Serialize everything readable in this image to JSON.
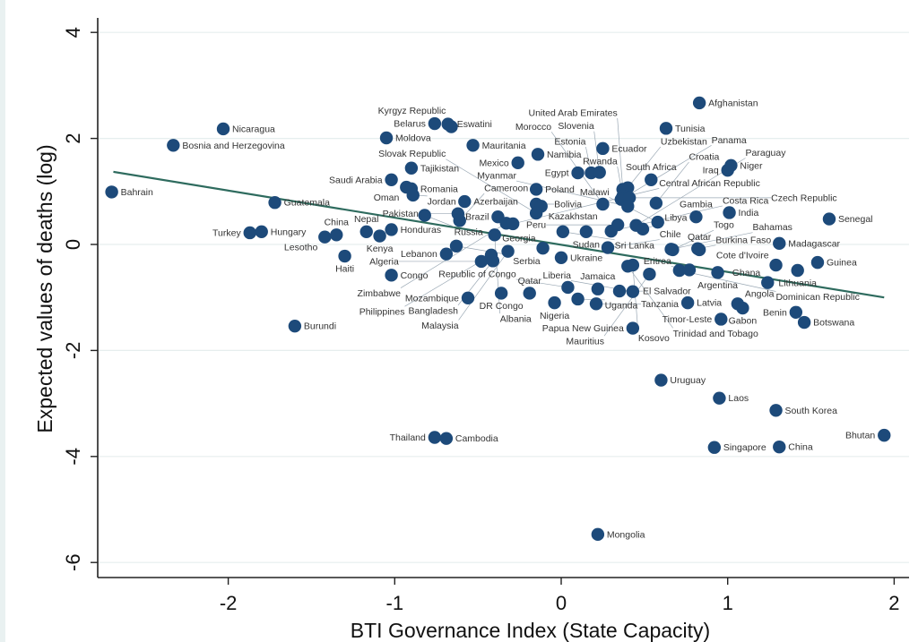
{
  "chart_data": {
    "type": "scatter",
    "title": "",
    "xlabel": "BTI Governance Index (State Capacity)",
    "ylabel": "Expected values of deaths (log)",
    "xlim": [
      -2.78,
      2.08
    ],
    "ylim": [
      -6.3,
      4.3
    ],
    "xticks": [
      -2,
      -1,
      0,
      1,
      2
    ],
    "yticks": [
      4,
      2,
      0,
      -2,
      -4,
      -6
    ],
    "grid": "horizontal",
    "legend": "none",
    "marker_color": "#1d4a7a",
    "fit_line_color": "#2e6b5e",
    "fit_line": {
      "x": [
        -2.69,
        1.94
      ],
      "y": [
        1.37,
        -1.0
      ]
    },
    "points": [
      {
        "label": "Bahrain",
        "x": -2.7,
        "y": 0.99
      },
      {
        "label": "Bosnia and Herzegovina",
        "x": -2.33,
        "y": 1.87
      },
      {
        "label": "Nicaragua",
        "x": -2.03,
        "y": 2.18
      },
      {
        "label": "Guatemala",
        "x": -1.72,
        "y": 0.79
      },
      {
        "label": "Turkey",
        "x": -1.87,
        "y": 0.22
      },
      {
        "label": "Hungary",
        "x": -1.8,
        "y": 0.24
      },
      {
        "label": "Lesotho",
        "x": -1.42,
        "y": 0.14
      },
      {
        "label": "China",
        "x": -1.35,
        "y": 0.18
      },
      {
        "label": "Haiti",
        "x": -1.3,
        "y": -0.22
      },
      {
        "label": "Nepal",
        "x": -1.17,
        "y": 0.24
      },
      {
        "label": "Kenya",
        "x": -1.09,
        "y": 0.16
      },
      {
        "label": "Honduras",
        "x": -1.02,
        "y": 0.28
      },
      {
        "label": "Congo",
        "x": -1.02,
        "y": -0.58
      },
      {
        "label": "Burundi",
        "x": -1.6,
        "y": -1.54
      },
      {
        "label": "Moldova",
        "x": -1.05,
        "y": 2.01
      },
      {
        "label": "Saudi Arabia",
        "x": -1.02,
        "y": 1.22
      },
      {
        "label": "Oman",
        "x": -0.93,
        "y": 1.08
      },
      {
        "label": "Romania",
        "x": -0.9,
        "y": 1.05
      },
      {
        "label": "Jordan",
        "x": -0.89,
        "y": 0.93
      },
      {
        "label": "Tajikistan",
        "x": -0.9,
        "y": 1.44
      },
      {
        "label": "Russia",
        "x": -0.82,
        "y": 0.55
      },
      {
        "label": "Belarus",
        "x": -0.76,
        "y": 2.28
      },
      {
        "label": "Eswatini",
        "x": -0.68,
        "y": 2.27
      },
      {
        "label": "Kyrgyz Republic",
        "x": -0.66,
        "y": 2.22
      },
      {
        "label": "Mauritania",
        "x": -0.53,
        "y": 1.87
      },
      {
        "label": "Azerbaijan",
        "x": -0.58,
        "y": 0.81
      },
      {
        "label": "Pakistan",
        "x": -0.62,
        "y": 0.58
      },
      {
        "label": "Cameroon",
        "x": -0.61,
        "y": 0.45
      },
      {
        "label": "Serbia",
        "x": -0.63,
        "y": -0.03
      },
      {
        "label": "Lebanon",
        "x": -0.69,
        "y": -0.18
      },
      {
        "label": "Mozambique",
        "x": -0.56,
        "y": -1.01
      },
      {
        "label": "Brazil",
        "x": -0.38,
        "y": 0.52
      },
      {
        "label": "Zimbabwe",
        "x": -0.33,
        "y": 0.4
      },
      {
        "label": "Albania",
        "x": -0.4,
        "y": 0.18
      },
      {
        "label": "Malaysia",
        "x": -0.32,
        "y": -0.13
      },
      {
        "label": "Philippines",
        "x": -0.42,
        "y": -0.2
      },
      {
        "label": "Algeria",
        "x": -0.48,
        "y": -0.32
      },
      {
        "label": "Bangladesh",
        "x": -0.41,
        "y": -0.31
      },
      {
        "label": "DR Congo",
        "x": -0.36,
        "y": -0.92
      },
      {
        "label": "Mexico",
        "x": -0.26,
        "y": 1.54
      },
      {
        "label": "Namibia",
        "x": -0.14,
        "y": 1.7
      },
      {
        "label": "Poland",
        "x": -0.15,
        "y": 1.04
      },
      {
        "label": "Bolivia",
        "x": -0.15,
        "y": 0.76
      },
      {
        "label": "Kazakhstan",
        "x": -0.12,
        "y": 0.72
      },
      {
        "label": "Slovak Republic",
        "x": -0.15,
        "y": 0.59
      },
      {
        "label": "Central African Republic",
        "x": -0.29,
        "y": 0.39
      },
      {
        "label": "Georgia",
        "x": -0.11,
        "y": -0.07
      },
      {
        "label": "Ukraine",
        "x": 0.0,
        "y": -0.25
      },
      {
        "label": "Qatar",
        "x": -0.19,
        "y": -0.92
      },
      {
        "label": "Republic of Congo",
        "x": 0.04,
        "y": -0.81
      },
      {
        "label": "Nigeria",
        "x": -0.04,
        "y": -1.1
      },
      {
        "label": "Uganda",
        "x": 0.1,
        "y": -1.03
      },
      {
        "label": "Jamaica",
        "x": 0.22,
        "y": -0.84
      },
      {
        "label": "Tanzania",
        "x": 0.21,
        "y": -1.12
      },
      {
        "label": "El Salvador",
        "x": 0.35,
        "y": -0.88
      },
      {
        "label": "Liberia",
        "x": 0.43,
        "y": -0.89
      },
      {
        "label": "Sri Lanka",
        "x": 0.01,
        "y": 0.24
      },
      {
        "label": "Sudan",
        "x": 0.15,
        "y": 0.24
      },
      {
        "label": "Egypt",
        "x": 0.1,
        "y": 1.35
      },
      {
        "label": "Estonia",
        "x": 0.18,
        "y": 1.35
      },
      {
        "label": "Slovenia",
        "x": 0.23,
        "y": 1.36
      },
      {
        "label": "Ecuador",
        "x": 0.25,
        "y": 1.81
      },
      {
        "label": "Morocco",
        "x": 0.25,
        "y": 0.76
      },
      {
        "label": "Uzbekistan",
        "x": 0.4,
        "y": 1.07
      },
      {
        "label": "United Arab Emirates",
        "x": 0.37,
        "y": 1.04
      },
      {
        "label": "Rwanda",
        "x": 0.37,
        "y": 0.91
      },
      {
        "label": "Panama",
        "x": 0.36,
        "y": 0.85
      },
      {
        "label": "Czech Republic",
        "x": 0.41,
        "y": 0.88
      },
      {
        "label": "Myanmar",
        "x": 0.4,
        "y": 0.72
      },
      {
        "label": "Croatia",
        "x": 0.57,
        "y": 0.78
      },
      {
        "label": "South Africa",
        "x": 0.54,
        "y": 1.22
      },
      {
        "label": "Chile",
        "x": 0.28,
        "y": -0.06
      },
      {
        "label": "Costa Rica",
        "x": 0.3,
        "y": 0.25
      },
      {
        "label": "Peru",
        "x": 0.34,
        "y": 0.37
      },
      {
        "label": "Paraguay",
        "x": 0.45,
        "y": 0.36
      },
      {
        "label": "Libya",
        "x": 0.49,
        "y": 0.29
      },
      {
        "label": "Malawi",
        "x": 0.58,
        "y": 0.42
      },
      {
        "label": "Gambia",
        "x": 0.81,
        "y": 0.52
      },
      {
        "label": "India",
        "x": 1.01,
        "y": 0.6
      },
      {
        "label": "Niger",
        "x": 1.02,
        "y": 1.49
      },
      {
        "label": "Iraq",
        "x": 1.0,
        "y": 1.4
      },
      {
        "label": "Afghanistan",
        "x": 0.83,
        "y": 2.67
      },
      {
        "label": "Tunisia",
        "x": 0.63,
        "y": 2.19
      },
      {
        "label": "Bahamas",
        "x": 0.66,
        "y": -0.09
      },
      {
        "label": "Togo",
        "x": 0.67,
        "y": -0.1
      },
      {
        "label": "Qatar",
        "x": 0.83,
        "y": -0.1
      },
      {
        "label": "Burkina Faso",
        "x": 0.82,
        "y": -0.08
      },
      {
        "label": "Trinidad and Tobago",
        "x": 0.4,
        "y": -0.41
      },
      {
        "label": "Kosovo",
        "x": 0.43,
        "y": -0.39
      },
      {
        "label": "Mauritius",
        "x": 0.53,
        "y": -0.56
      },
      {
        "label": "Dominican Republic",
        "x": 0.71,
        "y": -0.49
      },
      {
        "label": "Eritrea",
        "x": 0.77,
        "y": -0.48
      },
      {
        "label": "Argentina",
        "x": 0.94,
        "y": -0.53
      },
      {
        "label": "Latvia",
        "x": 0.76,
        "y": -1.1
      },
      {
        "label": "Papua New Guinea",
        "x": 0.43,
        "y": -1.58
      },
      {
        "label": "Angola",
        "x": 1.06,
        "y": -1.12
      },
      {
        "label": "Gabon",
        "x": 1.09,
        "y": -1.2
      },
      {
        "label": "Timor-Leste",
        "x": 0.96,
        "y": -1.41
      },
      {
        "label": "Benin",
        "x": 1.41,
        "y": -1.28
      },
      {
        "label": "Botswana",
        "x": 1.46,
        "y": -1.47
      },
      {
        "label": "Madagascar",
        "x": 1.31,
        "y": 0.02
      },
      {
        "label": "Senegal",
        "x": 1.61,
        "y": 0.48
      },
      {
        "label": "Cote d'Ivoire",
        "x": 1.29,
        "y": -0.39
      },
      {
        "label": "Guinea",
        "x": 1.54,
        "y": -0.34
      },
      {
        "label": "Lithuania",
        "x": 1.42,
        "y": -0.49
      },
      {
        "label": "Ghana",
        "x": 1.24,
        "y": -0.72
      },
      {
        "label": "Uruguay",
        "x": 0.6,
        "y": -2.56
      },
      {
        "label": "Laos",
        "x": 0.95,
        "y": -2.9
      },
      {
        "label": "South Korea",
        "x": 1.29,
        "y": -3.13
      },
      {
        "label": "Singapore",
        "x": 0.92,
        "y": -3.83
      },
      {
        "label": "China",
        "x": 1.31,
        "y": -3.82
      },
      {
        "label": "Bhutan",
        "x": 1.94,
        "y": -3.6
      },
      {
        "label": "Thailand",
        "x": -0.76,
        "y": -3.64
      },
      {
        "label": "Cambodia",
        "x": -0.69,
        "y": -3.66
      },
      {
        "label": "Mongolia",
        "x": 0.22,
        "y": -5.47
      }
    ]
  }
}
